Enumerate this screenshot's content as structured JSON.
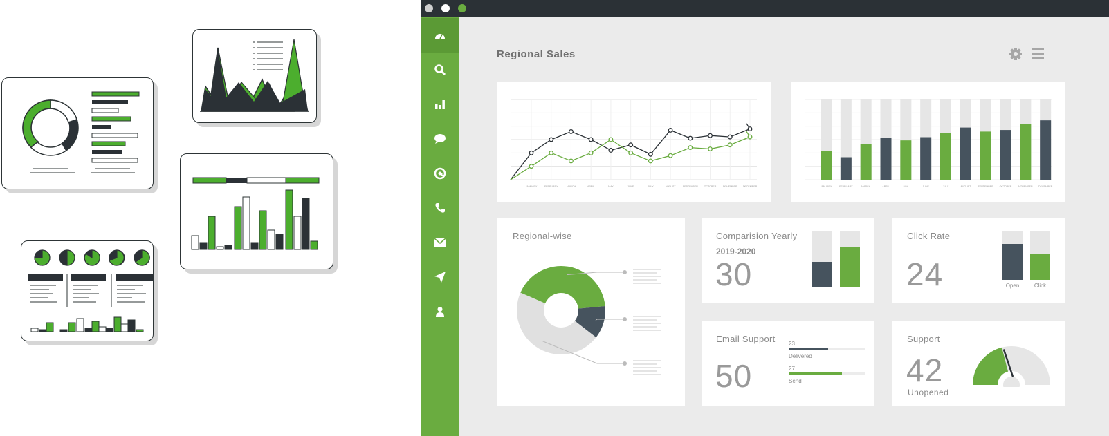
{
  "window": {
    "title": "Regional Sales",
    "controls": {
      "close_color": "#cfcfcf",
      "minimize_color": "#ffffff",
      "maximize_color": "#6aac40"
    }
  },
  "sidebar": {
    "items": [
      {
        "icon": "dashboard-icon",
        "active": true
      },
      {
        "icon": "search-icon",
        "active": false
      },
      {
        "icon": "bar-chart-icon",
        "active": false
      },
      {
        "icon": "chat-bubble-icon",
        "active": false
      },
      {
        "icon": "at-sign-icon",
        "active": false
      },
      {
        "icon": "phone-icon",
        "active": false
      },
      {
        "icon": "mail-icon",
        "active": false
      },
      {
        "icon": "send-icon",
        "active": false
      },
      {
        "icon": "user-icon",
        "active": false
      }
    ]
  },
  "header_actions": {
    "settings_icon": "gear-icon",
    "menu_icon": "hamburger-menu-icon"
  },
  "colors": {
    "green": "#6aac40",
    "slate": "#46535e",
    "light_gray": "#e6e6e6",
    "dark": "#2b3136"
  },
  "line_chart": {
    "type": "line",
    "categories": [
      "JANUARY",
      "FEBRUARY",
      "MARCH",
      "APRIL",
      "MAY",
      "JUNE",
      "JULY",
      "AUGUST",
      "SEPTEMBER",
      "OCTOBER",
      "NOVEMBER",
      "DECEMBER"
    ],
    "series": [
      {
        "color": "#2b3136",
        "values": [
          2.0,
          3.0,
          3.6,
          3.0,
          2.2,
          2.6,
          1.9,
          3.7,
          3.1,
          3.3,
          3.2,
          3.8
        ]
      },
      {
        "color": "#6aac40",
        "values": [
          1.0,
          2.0,
          1.4,
          2.0,
          3.0,
          2.0,
          1.4,
          1.8,
          2.4,
          2.3,
          2.6,
          3.2
        ]
      }
    ],
    "start_value": 0.0,
    "ylim": [
      0,
      6
    ]
  },
  "bar_chart": {
    "type": "bar",
    "categories": [
      "JANUARY",
      "FEBRUARY",
      "MARCH",
      "APRIL",
      "MAY",
      "JUNE",
      "JULY",
      "AUGUST",
      "SEPTEMBER",
      "OCTOBER",
      "NOVEMBER",
      "DECEMBER"
    ],
    "values": [
      36,
      28,
      44,
      52,
      49,
      53,
      58,
      65,
      60,
      62,
      69,
      74
    ],
    "bar_colors": [
      "#6aac40",
      "#46535e",
      "#6aac40",
      "#46535e",
      "#6aac40",
      "#46535e",
      "#6aac40",
      "#46535e",
      "#6aac40",
      "#46535e",
      "#6aac40",
      "#46535e"
    ],
    "ylim": [
      0,
      100
    ]
  },
  "regional_wise": {
    "title": "Regional-wise",
    "slices": [
      {
        "value": 42,
        "color": "#6aac40"
      },
      {
        "value": 12,
        "color": "#46535e"
      },
      {
        "value": 46,
        "color": "#e0e0e0"
      }
    ]
  },
  "comparison_yearly": {
    "title": "Comparision Yearly",
    "period": "2019-2020",
    "value": "30",
    "bars": [
      {
        "fill": 0.45,
        "color": "#46535e"
      },
      {
        "fill": 0.72,
        "color": "#6aac40"
      }
    ]
  },
  "click_rate": {
    "title": "Click Rate",
    "value": "24",
    "bars": [
      {
        "label": "Open",
        "fill": 0.75,
        "color": "#46535e"
      },
      {
        "label": "Click",
        "fill": 0.55,
        "color": "#6aac40"
      }
    ]
  },
  "email_support": {
    "title": "Email Support",
    "value": "50",
    "progress": [
      {
        "count": "23",
        "label": "Delivered",
        "fill": 0.52,
        "color": "#46535e"
      },
      {
        "count": "27",
        "label": "Send",
        "fill": 0.7,
        "color": "#6aac40"
      }
    ]
  },
  "support": {
    "title": "Support",
    "value": "42",
    "caption": "Unopened",
    "gauge_fill": 0.42
  }
}
